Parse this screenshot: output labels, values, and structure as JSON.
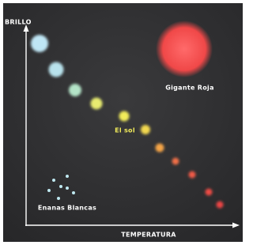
{
  "axes": {
    "y_label": "BRILLO",
    "x_label": "TEMPERATURA"
  },
  "annotations": {
    "red_giant": "Gigante Roja",
    "sun": "El sol",
    "white_dwarfs": "Enanas Blancas"
  }
}
